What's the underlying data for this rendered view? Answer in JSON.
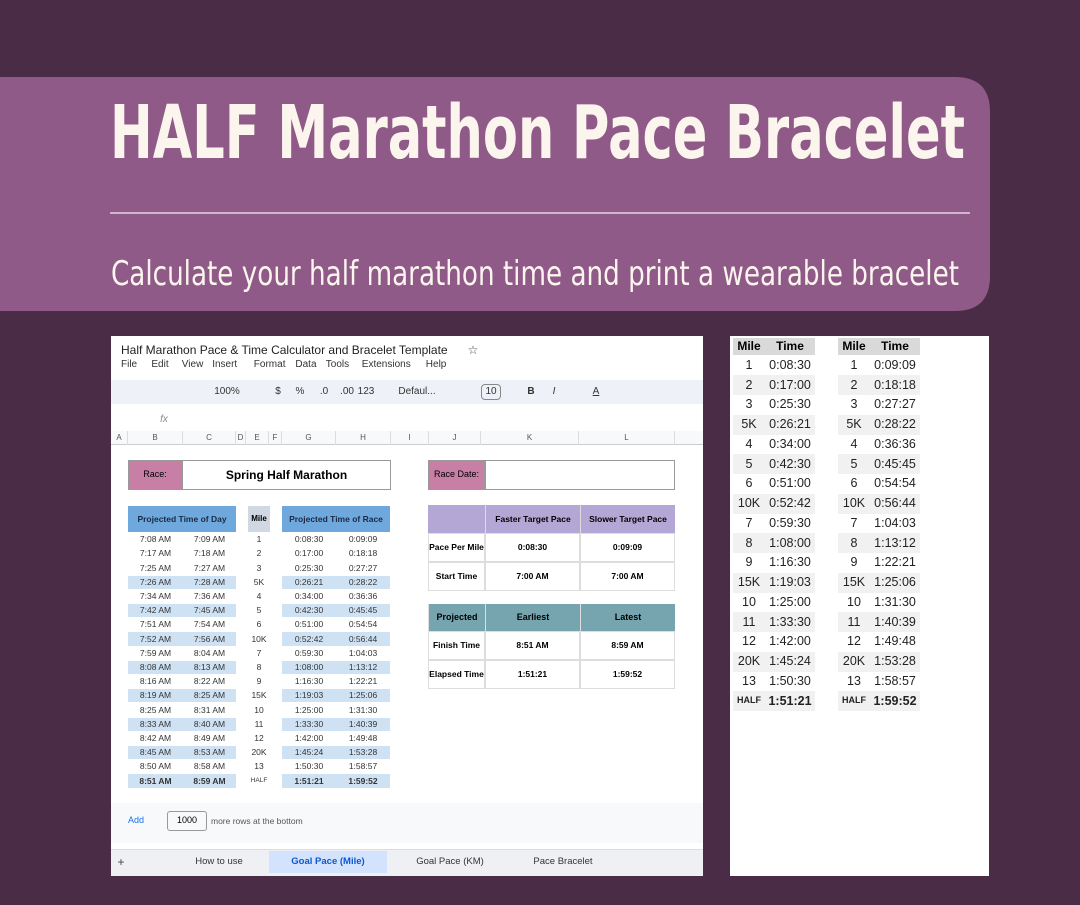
{
  "header": {
    "title": "HALF Marathon Pace Bracelet",
    "subtitle": "Calculate your half marathon time and print a wearable bracelet"
  },
  "sheet": {
    "doc_title": "Half Marathon Pace & Time Calculator and Bracelet Template",
    "menu": [
      "File",
      "Edit",
      "View",
      "Insert",
      "Format",
      "Data",
      "Tools",
      "Extensions",
      "Help"
    ],
    "toolbar": [
      "100%",
      "$",
      "%",
      ".0",
      ".00",
      "123",
      "Defaul...",
      "10",
      "B",
      "I",
      "A"
    ],
    "formula_icon": "fx",
    "columns": [
      "A",
      "B",
      "C",
      "D",
      "E",
      "F",
      "G",
      "H",
      "I",
      "J",
      "K",
      "L"
    ],
    "race_label": "Race:",
    "race_name": "Spring Half Marathon",
    "race_date_label": "Race Date:",
    "splits": {
      "headers": [
        "Projected Time of Day",
        "Mile",
        "Projected Time of Race"
      ],
      "rows": [
        [
          "7:08 AM",
          "7:09 AM",
          "1",
          "0:08:30",
          "0:09:09"
        ],
        [
          "7:17 AM",
          "7:18 AM",
          "2",
          "0:17:00",
          "0:18:18"
        ],
        [
          "7:25 AM",
          "7:27 AM",
          "3",
          "0:25:30",
          "0:27:27"
        ],
        [
          "7:26 AM",
          "7:28 AM",
          "5K",
          "0:26:21",
          "0:28:22"
        ],
        [
          "7:34 AM",
          "7:36 AM",
          "4",
          "0:34:00",
          "0:36:36"
        ],
        [
          "7:42 AM",
          "7:45 AM",
          "5",
          "0:42:30",
          "0:45:45"
        ],
        [
          "7:51 AM",
          "7:54 AM",
          "6",
          "0:51:00",
          "0:54:54"
        ],
        [
          "7:52 AM",
          "7:56 AM",
          "10K",
          "0:52:42",
          "0:56:44"
        ],
        [
          "7:59 AM",
          "8:04 AM",
          "7",
          "0:59:30",
          "1:04:03"
        ],
        [
          "8:08 AM",
          "8:13 AM",
          "8",
          "1:08:00",
          "1:13:12"
        ],
        [
          "8:16 AM",
          "8:22 AM",
          "9",
          "1:16:30",
          "1:22:21"
        ],
        [
          "8:19 AM",
          "8:25 AM",
          "15K",
          "1:19:03",
          "1:25:06"
        ],
        [
          "8:25 AM",
          "8:31 AM",
          "10",
          "1:25:00",
          "1:31:30"
        ],
        [
          "8:33 AM",
          "8:40 AM",
          "11",
          "1:33:30",
          "1:40:39"
        ],
        [
          "8:42 AM",
          "8:49 AM",
          "12",
          "1:42:00",
          "1:49:48"
        ],
        [
          "8:45 AM",
          "8:53 AM",
          "20K",
          "1:45:24",
          "1:53:28"
        ],
        [
          "8:50 AM",
          "8:58 AM",
          "13",
          "1:50:30",
          "1:58:57"
        ],
        [
          "8:51 AM",
          "8:59 AM",
          "HALF",
          "1:51:21",
          "1:59:52"
        ]
      ]
    },
    "pace": {
      "headers": [
        "Faster Target Pace",
        "Slower Target Pace"
      ],
      "rows": [
        [
          "Pace Per Mile",
          "0:08:30",
          "0:09:09"
        ],
        [
          "Start Time",
          "7:00 AM",
          "7:00 AM"
        ]
      ]
    },
    "projected": {
      "headers": [
        "Projected",
        "Earliest",
        "Latest"
      ],
      "rows": [
        [
          "Finish Time",
          "8:51 AM",
          "8:59 AM"
        ],
        [
          "Elapsed Time",
          "1:51:21",
          "1:59:52"
        ]
      ]
    },
    "footer": {
      "add": "Add",
      "rows": "1000",
      "text": "more rows at the bottom"
    },
    "tabs": [
      "How to use",
      "Goal Pace (Mile)",
      "Goal Pace (KM)",
      "Pace Bracelet"
    ]
  },
  "bracelet": {
    "headers": [
      "Mile",
      "Time"
    ],
    "left": [
      [
        "1",
        "0:08:30"
      ],
      [
        "2",
        "0:17:00"
      ],
      [
        "3",
        "0:25:30"
      ],
      [
        "5K",
        "0:26:21"
      ],
      [
        "4",
        "0:34:00"
      ],
      [
        "5",
        "0:42:30"
      ],
      [
        "6",
        "0:51:00"
      ],
      [
        "10K",
        "0:52:42"
      ],
      [
        "7",
        "0:59:30"
      ],
      [
        "8",
        "1:08:00"
      ],
      [
        "9",
        "1:16:30"
      ],
      [
        "15K",
        "1:19:03"
      ],
      [
        "10",
        "1:25:00"
      ],
      [
        "11",
        "1:33:30"
      ],
      [
        "12",
        "1:42:00"
      ],
      [
        "20K",
        "1:45:24"
      ],
      [
        "13",
        "1:50:30"
      ],
      [
        "HALF",
        "1:51:21"
      ]
    ],
    "right": [
      [
        "1",
        "0:09:09"
      ],
      [
        "2",
        "0:18:18"
      ],
      [
        "3",
        "0:27:27"
      ],
      [
        "5K",
        "0:28:22"
      ],
      [
        "4",
        "0:36:36"
      ],
      [
        "5",
        "0:45:45"
      ],
      [
        "6",
        "0:54:54"
      ],
      [
        "10K",
        "0:56:44"
      ],
      [
        "7",
        "1:04:03"
      ],
      [
        "8",
        "1:13:12"
      ],
      [
        "9",
        "1:22:21"
      ],
      [
        "15K",
        "1:25:06"
      ],
      [
        "10",
        "1:31:30"
      ],
      [
        "11",
        "1:40:39"
      ],
      [
        "12",
        "1:49:48"
      ],
      [
        "20K",
        "1:53:28"
      ],
      [
        "13",
        "1:58:57"
      ],
      [
        "HALF",
        "1:59:52"
      ]
    ]
  }
}
